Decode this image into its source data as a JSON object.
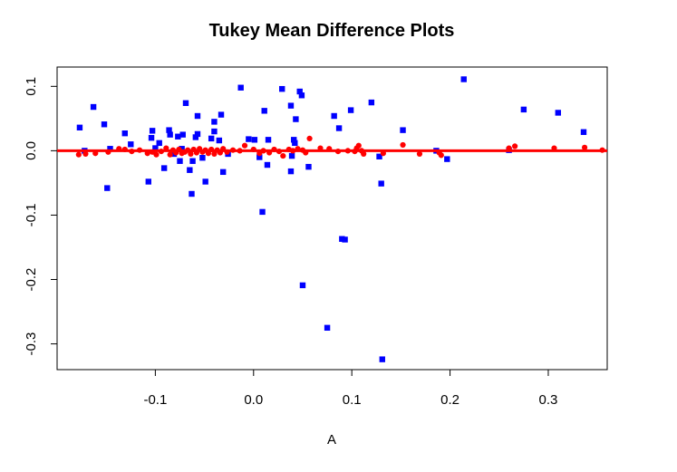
{
  "chart_data": {
    "type": "scatter",
    "title": "Tukey Mean Difference Plots",
    "xlabel": "A",
    "ylabel": "",
    "xlim": [
      -0.2,
      0.36
    ],
    "ylim": [
      -0.34,
      0.13
    ],
    "x_ticks": [
      -0.1,
      0.0,
      0.1,
      0.2,
      0.3
    ],
    "x_tick_labels": [
      "-0.1",
      "0.0",
      "0.1",
      "0.2",
      "0.3"
    ],
    "y_ticks": [
      -0.3,
      -0.2,
      -0.1,
      0.0,
      0.1
    ],
    "y_tick_labels": [
      "-0.3",
      "-0.2",
      "-0.1",
      "0.0",
      "0.1"
    ],
    "grid": false,
    "legend": "none",
    "reference_line": {
      "y": 0.0,
      "color": "#ff0000"
    },
    "series": [
      {
        "marker": "square",
        "color": "#0000ff",
        "points": [
          [
            -0.177,
            0.036
          ],
          [
            -0.172,
            0.0
          ],
          [
            -0.163,
            0.068
          ],
          [
            -0.152,
            0.041
          ],
          [
            -0.149,
            -0.058
          ],
          [
            -0.146,
            0.003
          ],
          [
            -0.131,
            0.027
          ],
          [
            -0.125,
            0.01
          ],
          [
            -0.107,
            -0.048
          ],
          [
            -0.104,
            0.02
          ],
          [
            -0.103,
            0.031
          ],
          [
            -0.1,
            0.004
          ],
          [
            -0.096,
            0.012
          ],
          [
            -0.091,
            -0.027
          ],
          [
            -0.086,
            0.032
          ],
          [
            -0.085,
            0.025
          ],
          [
            -0.081,
            -0.005
          ],
          [
            -0.077,
            0.022
          ],
          [
            -0.075,
            -0.016
          ],
          [
            -0.073,
            0.003
          ],
          [
            -0.072,
            0.025
          ],
          [
            -0.069,
            0.074
          ],
          [
            -0.065,
            -0.03
          ],
          [
            -0.063,
            -0.067
          ],
          [
            -0.062,
            -0.016
          ],
          [
            -0.059,
            0.021
          ],
          [
            -0.057,
            0.054
          ],
          [
            -0.057,
            0.026
          ],
          [
            -0.052,
            -0.011
          ],
          [
            -0.049,
            -0.048
          ],
          [
            -0.043,
            0.019
          ],
          [
            -0.04,
            0.03
          ],
          [
            -0.04,
            0.045
          ],
          [
            -0.035,
            0.016
          ],
          [
            -0.033,
            0.056
          ],
          [
            -0.031,
            -0.033
          ],
          [
            -0.026,
            -0.005
          ],
          [
            -0.013,
            0.098
          ],
          [
            -0.005,
            0.018
          ],
          [
            0.001,
            0.017
          ],
          [
            0.006,
            -0.01
          ],
          [
            0.009,
            -0.095
          ],
          [
            0.011,
            0.062
          ],
          [
            0.014,
            -0.022
          ],
          [
            0.015,
            0.017
          ],
          [
            0.029,
            0.096
          ],
          [
            0.038,
            0.07
          ],
          [
            0.038,
            -0.032
          ],
          [
            0.039,
            -0.008
          ],
          [
            0.041,
            0.017
          ],
          [
            0.042,
            0.012
          ],
          [
            0.043,
            0.049
          ],
          [
            0.047,
            0.092
          ],
          [
            0.049,
            0.086
          ],
          [
            0.05,
            -0.209
          ],
          [
            0.056,
            -0.025
          ],
          [
            0.075,
            -0.275
          ],
          [
            0.082,
            0.054
          ],
          [
            0.087,
            0.035
          ],
          [
            0.09,
            -0.137
          ],
          [
            0.093,
            -0.138
          ],
          [
            0.099,
            0.063
          ],
          [
            0.12,
            0.075
          ],
          [
            0.128,
            -0.009
          ],
          [
            0.13,
            -0.051
          ],
          [
            0.131,
            -0.324
          ],
          [
            0.152,
            0.032
          ],
          [
            0.186,
            0.0
          ],
          [
            0.197,
            -0.013
          ],
          [
            0.214,
            0.111
          ],
          [
            0.26,
            0.001
          ],
          [
            0.275,
            0.064
          ],
          [
            0.31,
            0.059
          ],
          [
            0.336,
            0.029
          ]
        ]
      },
      {
        "marker": "circle",
        "color": "#ff0000",
        "points": [
          [
            -0.178,
            -0.006
          ],
          [
            -0.171,
            -0.005
          ],
          [
            -0.161,
            -0.004
          ],
          [
            -0.148,
            -0.002
          ],
          [
            -0.137,
            0.003
          ],
          [
            -0.131,
            0.002
          ],
          [
            -0.124,
            -0.001
          ],
          [
            -0.116,
            0.001
          ],
          [
            -0.108,
            -0.004
          ],
          [
            -0.103,
            -0.002
          ],
          [
            -0.099,
            -0.006
          ],
          [
            -0.094,
            -0.001
          ],
          [
            -0.089,
            0.004
          ],
          [
            -0.085,
            -0.006
          ],
          [
            -0.082,
            0.001
          ],
          [
            -0.079,
            -0.003
          ],
          [
            -0.076,
            0.002
          ],
          [
            -0.073,
            -0.004
          ],
          [
            -0.07,
            -0.002
          ],
          [
            -0.067,
            0.001
          ],
          [
            -0.064,
            -0.005
          ],
          [
            -0.061,
            0.002
          ],
          [
            -0.058,
            -0.003
          ],
          [
            -0.055,
            0.003
          ],
          [
            -0.052,
            -0.002
          ],
          [
            -0.049,
            0.001
          ],
          [
            -0.046,
            -0.004
          ],
          [
            -0.043,
            0.002
          ],
          [
            -0.04,
            -0.005
          ],
          [
            -0.037,
            0.001
          ],
          [
            -0.034,
            -0.003
          ],
          [
            -0.031,
            0.003
          ],
          [
            -0.027,
            -0.002
          ],
          [
            -0.021,
            0.001
          ],
          [
            -0.014,
            0.0
          ],
          [
            -0.009,
            0.008
          ],
          [
            0.0,
            0.002
          ],
          [
            0.006,
            -0.004
          ],
          [
            0.01,
            0.0
          ],
          [
            0.016,
            -0.003
          ],
          [
            0.021,
            0.002
          ],
          [
            0.026,
            -0.001
          ],
          [
            0.03,
            -0.008
          ],
          [
            0.036,
            0.002
          ],
          [
            0.04,
            0.0
          ],
          [
            0.045,
            0.003
          ],
          [
            0.05,
            0.001
          ],
          [
            0.053,
            -0.003
          ],
          [
            0.057,
            0.019
          ],
          [
            0.068,
            0.004
          ],
          [
            0.077,
            0.003
          ],
          [
            0.086,
            -0.001
          ],
          [
            0.096,
            0.0
          ],
          [
            0.103,
            -0.001
          ],
          [
            0.105,
            0.004
          ],
          [
            0.107,
            0.008
          ],
          [
            0.11,
            0.0
          ],
          [
            0.112,
            -0.005
          ],
          [
            0.132,
            -0.004
          ],
          [
            0.152,
            0.009
          ],
          [
            0.169,
            -0.005
          ],
          [
            0.189,
            -0.003
          ],
          [
            0.191,
            -0.007
          ],
          [
            0.26,
            0.004
          ],
          [
            0.266,
            0.007
          ],
          [
            0.306,
            0.004
          ],
          [
            0.337,
            0.005
          ],
          [
            0.355,
            0.001
          ]
        ]
      }
    ]
  }
}
